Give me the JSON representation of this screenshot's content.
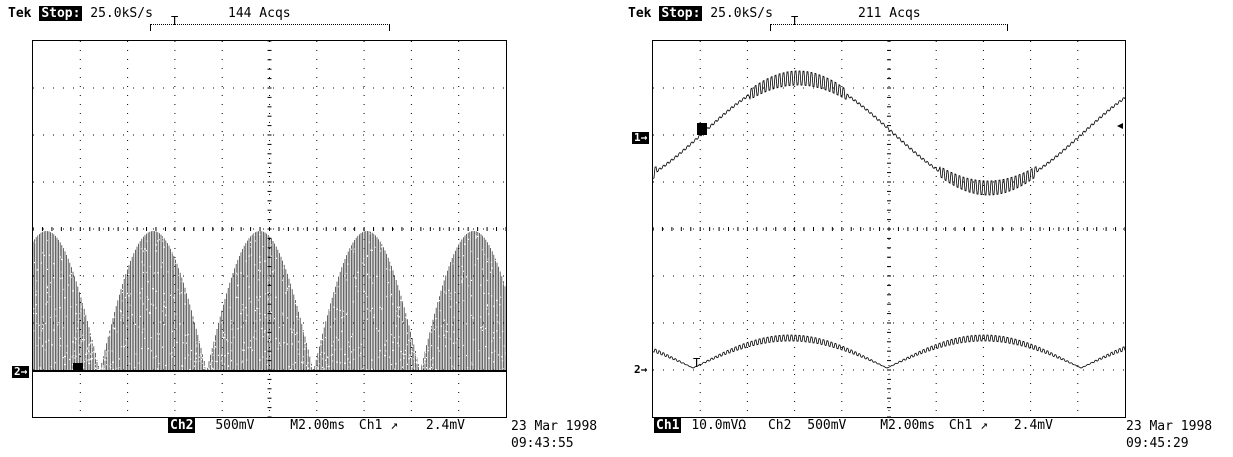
{
  "left": {
    "brand": "Tek",
    "status": "Stop:",
    "rate": "25.0kS/s",
    "acqs": "144 Acqs",
    "trigger_marker": "T",
    "ch_marker": "2→",
    "channel": "Ch2",
    "volts": "500mV",
    "timebase": "M2.00ms",
    "trigger_src": "Ch1",
    "trigger_slope": "↗",
    "trigger_level": "2.4mV",
    "date": "23 Mar 1998",
    "time": "09:43:55"
  },
  "right": {
    "brand": "Tek",
    "status": "Stop:",
    "rate": "25.0kS/s",
    "acqs": "211 Acqs",
    "trigger_marker": "T",
    "ch1_marker": "1→",
    "ch2_marker": "2→",
    "ch1_label": "Ch1",
    "ch1_volts": "10.0mVΩ",
    "ch2_label": "Ch2",
    "ch2_volts": "500mV",
    "timebase": "M2.00ms",
    "trigger_src": "Ch1",
    "trigger_slope": "↗",
    "trigger_level": "2.4mV",
    "date": "23 Mar 1998",
    "time": "09:45:29"
  },
  "colors": {
    "trace": "#000000",
    "background": "#ffffff",
    "grid": "#000000"
  }
}
